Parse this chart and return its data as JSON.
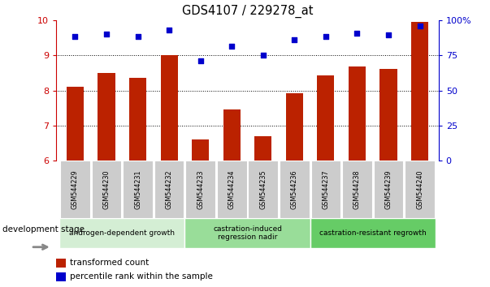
{
  "title": "GDS4107 / 229278_at",
  "categories": [
    "GSM544229",
    "GSM544230",
    "GSM544231",
    "GSM544232",
    "GSM544233",
    "GSM544234",
    "GSM544235",
    "GSM544236",
    "GSM544237",
    "GSM544238",
    "GSM544239",
    "GSM544240"
  ],
  "bar_values": [
    8.1,
    8.5,
    8.35,
    9.0,
    6.6,
    7.45,
    6.7,
    7.93,
    8.43,
    8.67,
    8.6,
    9.95
  ],
  "dot_values": [
    9.54,
    9.6,
    9.54,
    9.72,
    8.85,
    9.25,
    9.0,
    9.44,
    9.54,
    9.62,
    9.57,
    9.83
  ],
  "bar_color": "#bb2200",
  "dot_color": "#0000cc",
  "ylim": [
    6,
    10
  ],
  "yticks": [
    6,
    7,
    8,
    9,
    10
  ],
  "right_yticks": [
    0,
    25,
    50,
    75,
    100
  ],
  "right_ytick_labels": [
    "0",
    "25",
    "50",
    "75",
    "100%"
  ],
  "groups": [
    {
      "label": "androgen-dependent growth",
      "start": 0,
      "end": 3,
      "color": "#d4eed4"
    },
    {
      "label": "castration-induced\nregression nadir",
      "start": 4,
      "end": 7,
      "color": "#99dd99"
    },
    {
      "label": "castration-resistant regrowth",
      "start": 8,
      "end": 11,
      "color": "#66cc66"
    }
  ],
  "dev_stage_label": "development stage",
  "legend_bar_label": "transformed count",
  "legend_dot_label": "percentile rank within the sample",
  "bar_color_legend": "#bb2200",
  "dot_color_legend": "#0000cc",
  "xlabel_color": "#cc0000",
  "right_ylabel_color": "#0000cc",
  "tick_bg_color": "#cccccc"
}
